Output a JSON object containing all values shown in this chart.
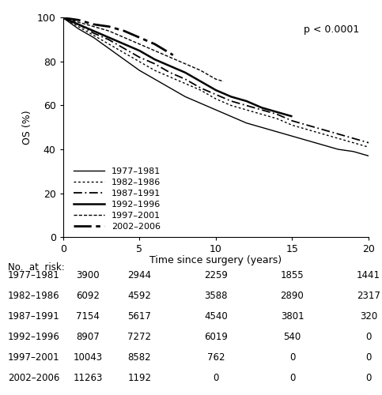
{
  "title": "",
  "ylabel": "OS (%)",
  "xlabel": "Time since surgery (years)",
  "pvalue": "p < 0.0001",
  "ylim": [
    0,
    100
  ],
  "xlim": [
    0,
    20
  ],
  "yticks": [
    0,
    20,
    40,
    60,
    80,
    100
  ],
  "xticks": [
    0,
    5,
    10,
    15,
    20
  ],
  "curves": [
    {
      "label": "1977–1981",
      "color": "#000000",
      "linestyle": "solid",
      "linewidth": 1.0,
      "x": [
        0,
        1,
        2,
        3,
        4,
        5,
        6,
        7,
        8,
        9,
        10,
        11,
        12,
        13,
        14,
        15,
        16,
        17,
        18,
        19,
        20
      ],
      "y": [
        100,
        95,
        91,
        86,
        81,
        76,
        72,
        68,
        64,
        61,
        58,
        55,
        52,
        50,
        48,
        46,
        44,
        42,
        40,
        39,
        37
      ]
    },
    {
      "label": "1982–1986",
      "color": "#000000",
      "linestyle": "loosely_dotted",
      "linewidth": 1.0,
      "x": [
        0,
        1,
        2,
        3,
        4,
        5,
        6,
        7,
        8,
        9,
        10,
        11,
        12,
        13,
        14,
        15,
        16,
        17,
        18,
        19,
        20
      ],
      "y": [
        100,
        96,
        92,
        88,
        84,
        80,
        76,
        73,
        70,
        67,
        63,
        60,
        58,
        56,
        54,
        51,
        49,
        47,
        45,
        43,
        41
      ]
    },
    {
      "label": "1987–1991",
      "color": "#000000",
      "linestyle": "long_dash_dot",
      "linewidth": 1.3,
      "x": [
        0,
        1,
        2,
        3,
        4,
        5,
        6,
        7,
        8,
        9,
        10,
        11,
        12,
        13,
        14,
        15,
        16,
        17,
        18,
        19,
        20
      ],
      "y": [
        100,
        97,
        93,
        90,
        86,
        82,
        79,
        75,
        72,
        68,
        65,
        62,
        60,
        58,
        56,
        53,
        51,
        49,
        47,
        45,
        43
      ]
    },
    {
      "label": "1992–1996",
      "color": "#000000",
      "linestyle": "solid",
      "linewidth": 1.8,
      "x": [
        0,
        1,
        2,
        3,
        4,
        5,
        6,
        7,
        8,
        9,
        10,
        11,
        12,
        13,
        14,
        15
      ],
      "y": [
        100,
        97,
        94,
        91,
        88,
        85,
        81,
        78,
        75,
        71,
        67,
        64,
        62,
        59,
        57,
        55
      ]
    },
    {
      "label": "1997–2001",
      "color": "#000000",
      "linestyle": "densely_dashed",
      "linewidth": 1.0,
      "x": [
        0,
        1,
        2,
        3,
        4,
        5,
        6,
        7,
        8,
        9,
        10,
        10.5
      ],
      "y": [
        100,
        98,
        96,
        94,
        91,
        88,
        85,
        82,
        79,
        76,
        72,
        71
      ]
    },
    {
      "label": "2002–2006",
      "color": "#000000",
      "linestyle": "dashdot_bold",
      "linewidth": 2.0,
      "x": [
        0,
        1,
        2,
        3,
        4,
        5,
        6,
        7.2
      ],
      "y": [
        100,
        99,
        97,
        96,
        94,
        91,
        88,
        83
      ]
    }
  ],
  "risk_table": {
    "header": "No.  at  risk:",
    "rows": [
      {
        "label": "1977–1981",
        "values": [
          "3900",
          "2944",
          "2259",
          "1855",
          "1441"
        ]
      },
      {
        "label": "1982–1986",
        "values": [
          "6092",
          "4592",
          "3588",
          "2890",
          "2317"
        ]
      },
      {
        "label": "1987–1991",
        "values": [
          "7154",
          "5617",
          "4540",
          "3801",
          "320"
        ]
      },
      {
        "label": "1992–1996",
        "values": [
          "8907",
          "7272",
          "6019",
          "540",
          "0"
        ]
      },
      {
        "label": "1997–2001",
        "values": [
          "10043",
          "8582",
          "762",
          "0",
          "0"
        ]
      },
      {
        "label": "2002–2006",
        "values": [
          "11263",
          "1192",
          "0",
          "0",
          "0"
        ]
      }
    ],
    "time_points": [
      0,
      5,
      10,
      15,
      20
    ]
  },
  "background_color": "#ffffff",
  "text_color": "#000000",
  "fontsize": 9
}
